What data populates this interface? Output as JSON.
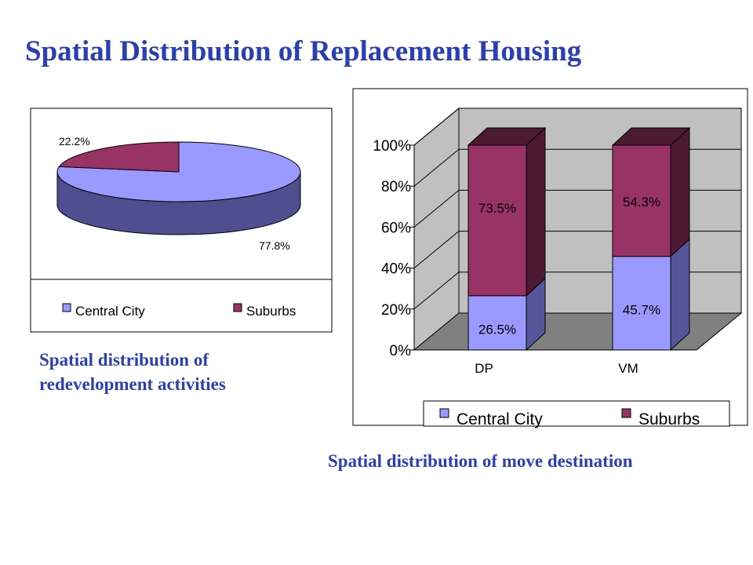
{
  "title": "Spatial Distribution of Replacement Housing",
  "captions": {
    "left": [
      "Spatial distribution of",
      "redevelopment activities"
    ],
    "right": "Spatial distribution of move destination"
  },
  "colors": {
    "central": "#9999ff",
    "suburbs": "#993366",
    "pie_side": "#4f4f8f",
    "bar_front_central": "#9999ff",
    "bar_side_central": "#55559a",
    "bar_front_suburbs": "#993366",
    "bar_side_suburbs": "#4d1a33",
    "wall": "#c0c0c0",
    "floor": "#808080",
    "title_text": "#2b3fb5"
  },
  "chart_data": [
    {
      "type": "pie",
      "title": "",
      "slices": [
        {
          "label": "Central City",
          "value": 77.8,
          "display": "77.8%"
        },
        {
          "label": "Suburbs",
          "value": 22.2,
          "display": "22.2%"
        }
      ],
      "legend": {
        "placement": "bottom",
        "entries": [
          "Central City",
          "Suburbs"
        ]
      }
    },
    {
      "type": "bar",
      "stacked": true,
      "title": "",
      "categories": [
        "DP",
        "VM"
      ],
      "series": [
        {
          "name": "Central City",
          "values": [
            26.5,
            45.7
          ],
          "labels": [
            "26.5%",
            "45.7%"
          ]
        },
        {
          "name": "Suburbs",
          "values": [
            73.5,
            54.3
          ],
          "labels": [
            "73.5%",
            "54.3%"
          ]
        }
      ],
      "xlabel": "",
      "ylabel": "",
      "ylim": [
        0,
        100
      ],
      "yticks": [
        "0%",
        "20%",
        "40%",
        "60%",
        "80%",
        "100%"
      ],
      "grid": true,
      "legend": {
        "placement": "bottom",
        "entries": [
          "Central City",
          "Suburbs"
        ]
      }
    }
  ]
}
